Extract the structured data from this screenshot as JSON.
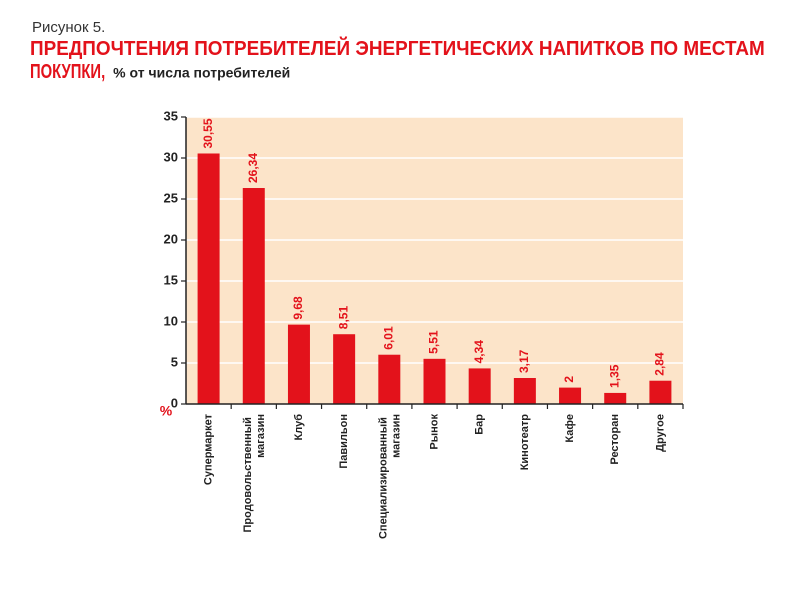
{
  "chart_data": {
    "type": "bar",
    "figure_label": "Рисунок 5.",
    "title": "ПРЕДПОЧТЕНИЯ ПОТРЕБИТЕЛЕЙ ЭНЕРГЕТИЧЕСКИХ НАПИТКОВ ПО МЕСТАМ ПОКУПКИ,",
    "subtitle": "% от числа потребителей",
    "ylabel": "%",
    "categories": [
      "Супермаркет",
      "Продовольственный магазин",
      "Клуб",
      "Павильон",
      "Специализированный магазин",
      "Рынок",
      "Бар",
      "Кинотеатр",
      "Кафе",
      "Ресторан",
      "Другое"
    ],
    "values": [
      30.55,
      26.34,
      9.68,
      8.51,
      6.01,
      5.51,
      4.34,
      3.17,
      2,
      1.35,
      2.84
    ],
    "value_labels": [
      "30,55",
      "26,34",
      "9,68",
      "8,51",
      "6,01",
      "5,51",
      "4,34",
      "3,17",
      "2",
      "1,35",
      "2,84"
    ],
    "color": "#e3121b",
    "ylim": [
      0,
      35
    ],
    "yticks": [
      0,
      5,
      10,
      15,
      20,
      25,
      30,
      35
    ],
    "grid": true
  }
}
